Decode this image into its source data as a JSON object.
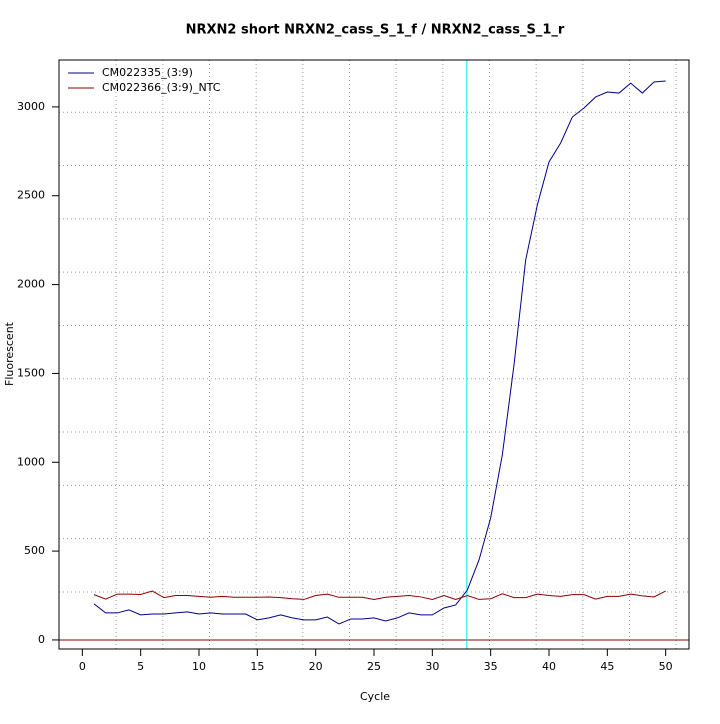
{
  "chart_data": {
    "type": "line",
    "title": "NRXN2 short NRXN2_cass_S_1_f / NRXN2_cass_S_1_r",
    "xlabel": "Cycle",
    "ylabel": "Fluorescent",
    "x": [
      1,
      2,
      3,
      4,
      5,
      6,
      7,
      8,
      9,
      10,
      11,
      12,
      13,
      14,
      15,
      16,
      17,
      18,
      19,
      20,
      21,
      22,
      23,
      24,
      25,
      26,
      27,
      28,
      29,
      30,
      31,
      32,
      33,
      34,
      35,
      36,
      37,
      38,
      39,
      40,
      41,
      42,
      43,
      44,
      45,
      46,
      47,
      48,
      49,
      50
    ],
    "series": [
      {
        "name": "CM022335_(3:9)",
        "color": "#00008b",
        "values": [
          203,
          152,
          152,
          169,
          141,
          146,
          146,
          152,
          158,
          146,
          152,
          146,
          146,
          146,
          113,
          124,
          141,
          124,
          113,
          113,
          129,
          90,
          118,
          118,
          124,
          107,
          124,
          152,
          141,
          141,
          180,
          197,
          281,
          450,
          687,
          1041,
          1548,
          2138,
          2448,
          2690,
          2797,
          2943,
          2994,
          3056,
          3084,
          3078,
          3134,
          3078,
          3140,
          3146
        ]
      },
      {
        "name": "CM022366_(3:9)_NTC",
        "color": "#8b0000",
        "values": [
          255,
          230,
          258,
          258,
          256,
          275,
          238,
          250,
          250,
          245,
          240,
          245,
          240,
          240,
          240,
          242,
          238,
          232,
          228,
          250,
          258,
          240,
          240,
          240,
          228,
          240,
          245,
          250,
          242,
          228,
          250,
          228,
          250,
          228,
          232,
          260,
          238,
          238,
          258,
          250,
          245,
          255,
          255,
          230,
          245,
          245,
          258,
          248,
          242,
          275
        ]
      }
    ],
    "xlim": [
      -2,
      52
    ],
    "ylim": [
      -51,
      3264
    ],
    "xticks": [
      0,
      5,
      10,
      15,
      20,
      25,
      30,
      35,
      40,
      45,
      50
    ],
    "yticks": [
      0,
      500,
      1000,
      1500,
      2000,
      2500,
      3000
    ],
    "grid": true,
    "xgrid": [
      2.9,
      6.9,
      10.9,
      14.9,
      18.9,
      22.9,
      26.9,
      30.9,
      34.9,
      38.9,
      42.9,
      46.9,
      50.9
    ],
    "ygrid": [
      270,
      570,
      870,
      1170,
      1470,
      1770,
      2070,
      2370,
      2670,
      2970
    ],
    "vline": {
      "value": 32.96,
      "color": "#00e5ee"
    },
    "hline": {
      "value": 0,
      "color": "#8b0000"
    },
    "legend": "top-left"
  }
}
